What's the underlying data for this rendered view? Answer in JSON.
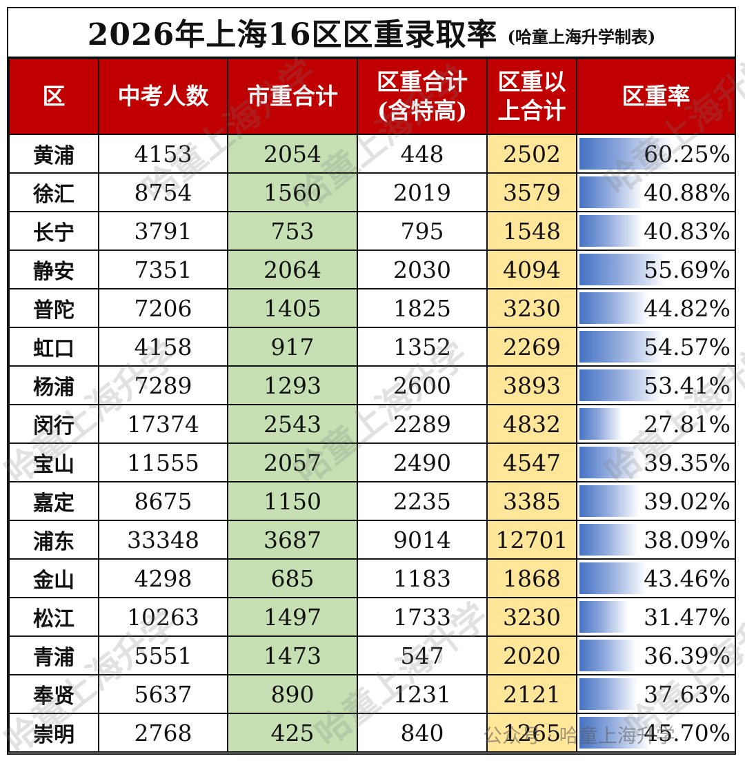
{
  "title": {
    "main": "2026年上海16区区重录取率",
    "sub": "(哈童上海升学制表)"
  },
  "headers": {
    "district": "区",
    "exam_count": "中考人数",
    "city_key_total": "市重合计",
    "district_key_total_line1": "区重合计",
    "district_key_total_line2": "(含特高)",
    "above_district_key_line1": "区重以",
    "above_district_key_line2": "上合计",
    "district_key_rate": "区重率"
  },
  "rows": [
    {
      "district": "黄浦",
      "exam_count": "4153",
      "city_key": "2054",
      "district_key": "448",
      "above": "2502",
      "rate": "60.25%",
      "rate_value": 0.6025
    },
    {
      "district": "徐汇",
      "exam_count": "8754",
      "city_key": "1560",
      "district_key": "2019",
      "above": "3579",
      "rate": "40.88%",
      "rate_value": 0.4088
    },
    {
      "district": "长宁",
      "exam_count": "3791",
      "city_key": "753",
      "district_key": "795",
      "above": "1548",
      "rate": "40.83%",
      "rate_value": 0.4083
    },
    {
      "district": "静安",
      "exam_count": "7351",
      "city_key": "2064",
      "district_key": "2030",
      "above": "4094",
      "rate": "55.69%",
      "rate_value": 0.5569
    },
    {
      "district": "普陀",
      "exam_count": "7206",
      "city_key": "1405",
      "district_key": "1825",
      "above": "3230",
      "rate": "44.82%",
      "rate_value": 0.4482
    },
    {
      "district": "虹口",
      "exam_count": "4158",
      "city_key": "917",
      "district_key": "1352",
      "above": "2269",
      "rate": "54.57%",
      "rate_value": 0.5457
    },
    {
      "district": "杨浦",
      "exam_count": "7289",
      "city_key": "1293",
      "district_key": "2600",
      "above": "3893",
      "rate": "53.41%",
      "rate_value": 0.5341
    },
    {
      "district": "闵行",
      "exam_count": "17374",
      "city_key": "2543",
      "district_key": "2289",
      "above": "4832",
      "rate": "27.81%",
      "rate_value": 0.2781
    },
    {
      "district": "宝山",
      "exam_count": "11555",
      "city_key": "2057",
      "district_key": "2490",
      "above": "4547",
      "rate": "39.35%",
      "rate_value": 0.3935
    },
    {
      "district": "嘉定",
      "exam_count": "8675",
      "city_key": "1150",
      "district_key": "2235",
      "above": "3385",
      "rate": "39.02%",
      "rate_value": 0.3902
    },
    {
      "district": "浦东",
      "exam_count": "33348",
      "city_key": "3687",
      "district_key": "9014",
      "above": "12701",
      "rate": "38.09%",
      "rate_value": 0.3809
    },
    {
      "district": "金山",
      "exam_count": "4298",
      "city_key": "685",
      "district_key": "1183",
      "above": "1868",
      "rate": "43.46%",
      "rate_value": 0.4346
    },
    {
      "district": "松江",
      "exam_count": "10263",
      "city_key": "1497",
      "district_key": "1733",
      "above": "3230",
      "rate": "31.47%",
      "rate_value": 0.3147
    },
    {
      "district": "青浦",
      "exam_count": "5551",
      "city_key": "1473",
      "district_key": "547",
      "above": "2020",
      "rate": "36.39%",
      "rate_value": 0.3639
    },
    {
      "district": "奉贤",
      "exam_count": "5637",
      "city_key": "890",
      "district_key": "1231",
      "above": "2121",
      "rate": "37.63%",
      "rate_value": 0.3763
    },
    {
      "district": "崇明",
      "exam_count": "2768",
      "city_key": "425",
      "district_key": "840",
      "above": "1265",
      "rate": "45.70%",
      "rate_value": 0.457
    }
  ],
  "colors": {
    "header_bg": "#c00000",
    "city_key_bg": "#c6e0b4",
    "above_bg": "#ffe699",
    "rate_bar": "#4472c4"
  },
  "watermark": {
    "text": "哈童上海升学",
    "footer": "公众号 · 哈童上海升学"
  }
}
